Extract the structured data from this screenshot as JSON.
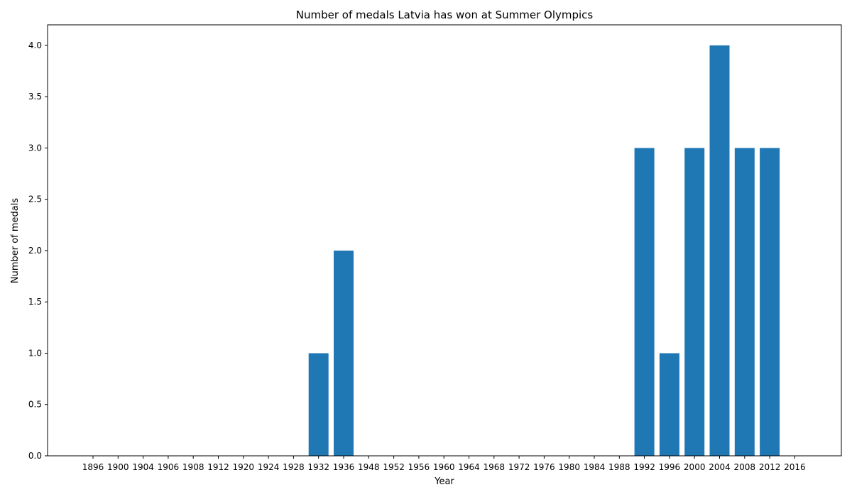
{
  "chart_data": {
    "type": "bar",
    "title": "Number of medals Latvia has won at Summer Olympics",
    "xlabel": "Year",
    "ylabel": "Number of medals",
    "categories": [
      "1896",
      "1900",
      "1904",
      "1906",
      "1908",
      "1912",
      "1920",
      "1924",
      "1928",
      "1932",
      "1936",
      "1948",
      "1952",
      "1956",
      "1960",
      "1964",
      "1968",
      "1972",
      "1976",
      "1980",
      "1984",
      "1988",
      "1992",
      "1996",
      "2000",
      "2004",
      "2008",
      "2012",
      "2016"
    ],
    "values": [
      0,
      0,
      0,
      0,
      0,
      0,
      0,
      0,
      0,
      1,
      2,
      0,
      0,
      0,
      0,
      0,
      0,
      0,
      0,
      0,
      0,
      0,
      3,
      1,
      3,
      4,
      3,
      3,
      0
    ],
    "ylim": [
      0,
      4.2
    ],
    "yticks": [
      0.0,
      0.5,
      1.0,
      1.5,
      2.0,
      2.5,
      3.0,
      3.5,
      4.0
    ],
    "ytick_labels": [
      "0.0",
      "0.5",
      "1.0",
      "1.5",
      "2.0",
      "2.5",
      "3.0",
      "3.5",
      "4.0"
    ],
    "grid": false,
    "color": "#1f77b4"
  }
}
